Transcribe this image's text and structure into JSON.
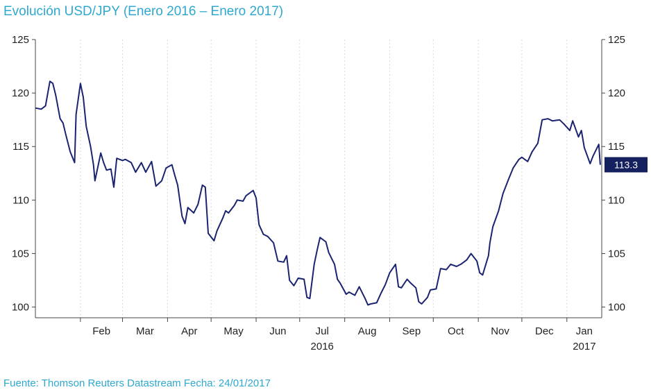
{
  "title": "Evolución USD/JPY (Enero 2016 – Enero 2017)",
  "source": "Fuente: Thomson Reuters Datastream Fecha: 24/01/2017",
  "colors": {
    "text_accent": "#2ea8d0",
    "series": "#1a2370",
    "label_bg": "#14215e",
    "grid": "#d9d9d9",
    "axis": "#444444"
  },
  "chart_data": {
    "type": "line",
    "title": "Evolución USD/JPY (Enero 2016 – Enero 2017)",
    "xlabel": "",
    "ylabel": "",
    "ylim": [
      99,
      125
    ],
    "yticks": [
      100,
      105,
      110,
      115,
      120,
      125
    ],
    "right_axis": true,
    "grid": "vertical",
    "months": [
      "Feb",
      "Mar",
      "Apr",
      "May",
      "Jun",
      "Jul",
      "Aug",
      "Sep",
      "Oct",
      "Nov",
      "Dec",
      "Jan"
    ],
    "year_labels": [
      "2016",
      "2017"
    ],
    "last_value_label": "113.3",
    "series": [
      {
        "x": [
          "2016-01-01",
          "2016-01-05",
          "2016-01-08",
          "2016-01-11",
          "2016-01-13",
          "2016-01-15",
          "2016-01-18",
          "2016-01-20",
          "2016-01-22",
          "2016-01-25",
          "2016-01-28",
          "2016-01-29",
          "2016-02-01",
          "2016-02-03",
          "2016-02-05",
          "2016-02-08",
          "2016-02-10",
          "2016-02-11",
          "2016-02-15",
          "2016-02-17",
          "2016-02-19",
          "2016-02-22",
          "2016-02-24",
          "2016-02-26",
          "2016-03-01",
          "2016-03-03",
          "2016-03-07",
          "2016-03-10",
          "2016-03-14",
          "2016-03-17",
          "2016-03-21",
          "2016-03-24",
          "2016-03-28",
          "2016-03-31",
          "2016-04-04",
          "2016-04-06",
          "2016-04-08",
          "2016-04-11",
          "2016-04-13",
          "2016-04-15",
          "2016-04-19",
          "2016-04-22",
          "2016-04-25",
          "2016-04-27",
          "2016-04-29",
          "2016-05-03",
          "2016-05-05",
          "2016-05-09",
          "2016-05-11",
          "2016-05-13",
          "2016-05-17",
          "2016-05-19",
          "2016-05-23",
          "2016-05-25",
          "2016-05-30",
          "2016-06-01",
          "2016-06-03",
          "2016-06-06",
          "2016-06-09",
          "2016-06-13",
          "2016-06-16",
          "2016-06-20",
          "2016-06-22",
          "2016-06-24",
          "2016-06-27",
          "2016-06-30",
          "2016-07-04",
          "2016-07-06",
          "2016-07-08",
          "2016-07-11",
          "2016-07-13",
          "2016-07-15",
          "2016-07-19",
          "2016-07-21",
          "2016-07-25",
          "2016-07-27",
          "2016-07-29",
          "2016-08-02",
          "2016-08-04",
          "2016-08-08",
          "2016-08-11",
          "2016-08-15",
          "2016-08-17",
          "2016-08-19",
          "2016-08-23",
          "2016-08-26",
          "2016-08-29",
          "2016-09-01",
          "2016-09-05",
          "2016-09-07",
          "2016-09-09",
          "2016-09-13",
          "2016-09-15",
          "2016-09-19",
          "2016-09-21",
          "2016-09-23",
          "2016-09-27",
          "2016-09-29",
          "2016-10-03",
          "2016-10-06",
          "2016-10-10",
          "2016-10-13",
          "2016-10-17",
          "2016-10-20",
          "2016-10-24",
          "2016-10-27",
          "2016-10-31",
          "2016-11-02",
          "2016-11-04",
          "2016-11-08",
          "2016-11-09",
          "2016-11-11",
          "2016-11-15",
          "2016-11-18",
          "2016-11-22",
          "2016-11-25",
          "2016-11-29",
          "2016-12-01",
          "2016-12-05",
          "2016-12-08",
          "2016-12-12",
          "2016-12-15",
          "2016-12-19",
          "2016-12-22",
          "2016-12-27",
          "2016-12-30",
          "2017-01-03",
          "2017-01-05",
          "2017-01-09",
          "2017-01-11",
          "2017-01-13",
          "2017-01-17",
          "2017-01-19",
          "2017-01-23",
          "2017-01-24"
        ],
        "y": [
          118.6,
          118.5,
          118.8,
          121.1,
          120.9,
          119.8,
          117.6,
          117.2,
          116.1,
          114.5,
          113.5,
          118.0,
          120.9,
          119.6,
          116.9,
          115.0,
          113.3,
          111.8,
          114.4,
          113.5,
          112.8,
          112.9,
          111.2,
          113.9,
          113.7,
          113.8,
          113.5,
          112.6,
          113.5,
          112.6,
          113.6,
          111.3,
          111.8,
          113.0,
          113.3,
          112.3,
          111.4,
          108.5,
          107.8,
          109.3,
          108.8,
          109.6,
          111.4,
          111.2,
          106.9,
          106.2,
          107.1,
          108.3,
          109.0,
          108.8,
          109.5,
          110.0,
          109.9,
          110.4,
          110.9,
          110.2,
          107.7,
          106.8,
          106.6,
          106.0,
          104.3,
          104.2,
          104.8,
          102.5,
          102.0,
          102.7,
          102.6,
          100.9,
          100.8,
          104.0,
          105.3,
          106.5,
          106.1,
          105.1,
          104.0,
          102.6,
          102.2,
          101.2,
          101.4,
          101.1,
          101.9,
          100.8,
          100.2,
          100.3,
          100.4,
          101.3,
          102.1,
          103.2,
          104.0,
          101.9,
          101.8,
          102.6,
          102.3,
          101.8,
          100.5,
          100.3,
          100.9,
          101.6,
          101.7,
          103.6,
          103.5,
          104.0,
          103.8,
          104.0,
          104.4,
          105.0,
          104.3,
          103.2,
          103.0,
          104.8,
          106.0,
          107.5,
          109.0,
          110.6,
          112.0,
          113.0,
          113.8,
          114.0,
          113.6,
          114.5,
          115.3,
          117.5,
          117.6,
          117.4,
          117.5,
          117.1,
          116.5,
          117.4,
          115.9,
          116.5,
          114.9,
          113.4,
          114.1,
          115.2,
          113.3
        ]
      }
    ]
  }
}
